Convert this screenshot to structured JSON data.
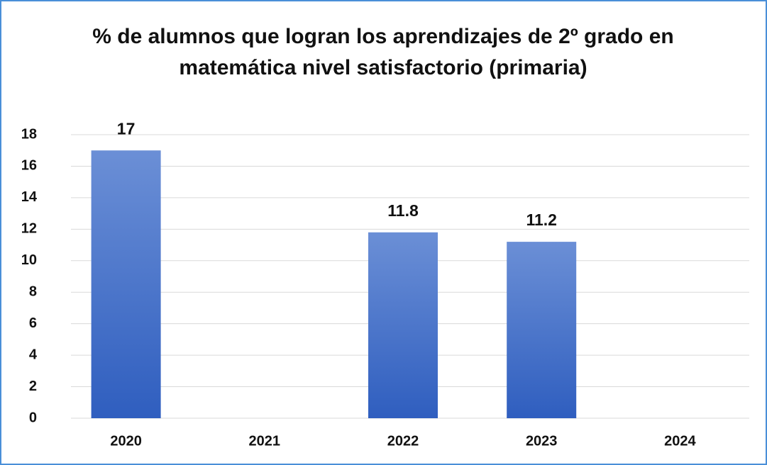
{
  "chart_data": {
    "type": "bar",
    "title": "% de alumnos que logran los aprendizajes de 2º grado en matemática nivel satisfactorio (primaria)",
    "categories": [
      "2020",
      "2021",
      "2022",
      "2023",
      "2024"
    ],
    "values": [
      17,
      null,
      11.8,
      11.2,
      null
    ],
    "color": "#3d6cc8",
    "ylim": [
      0,
      18
    ],
    "yticks": [
      0,
      2,
      4,
      6,
      8,
      10,
      12,
      14,
      16,
      18
    ],
    "grid": true
  }
}
